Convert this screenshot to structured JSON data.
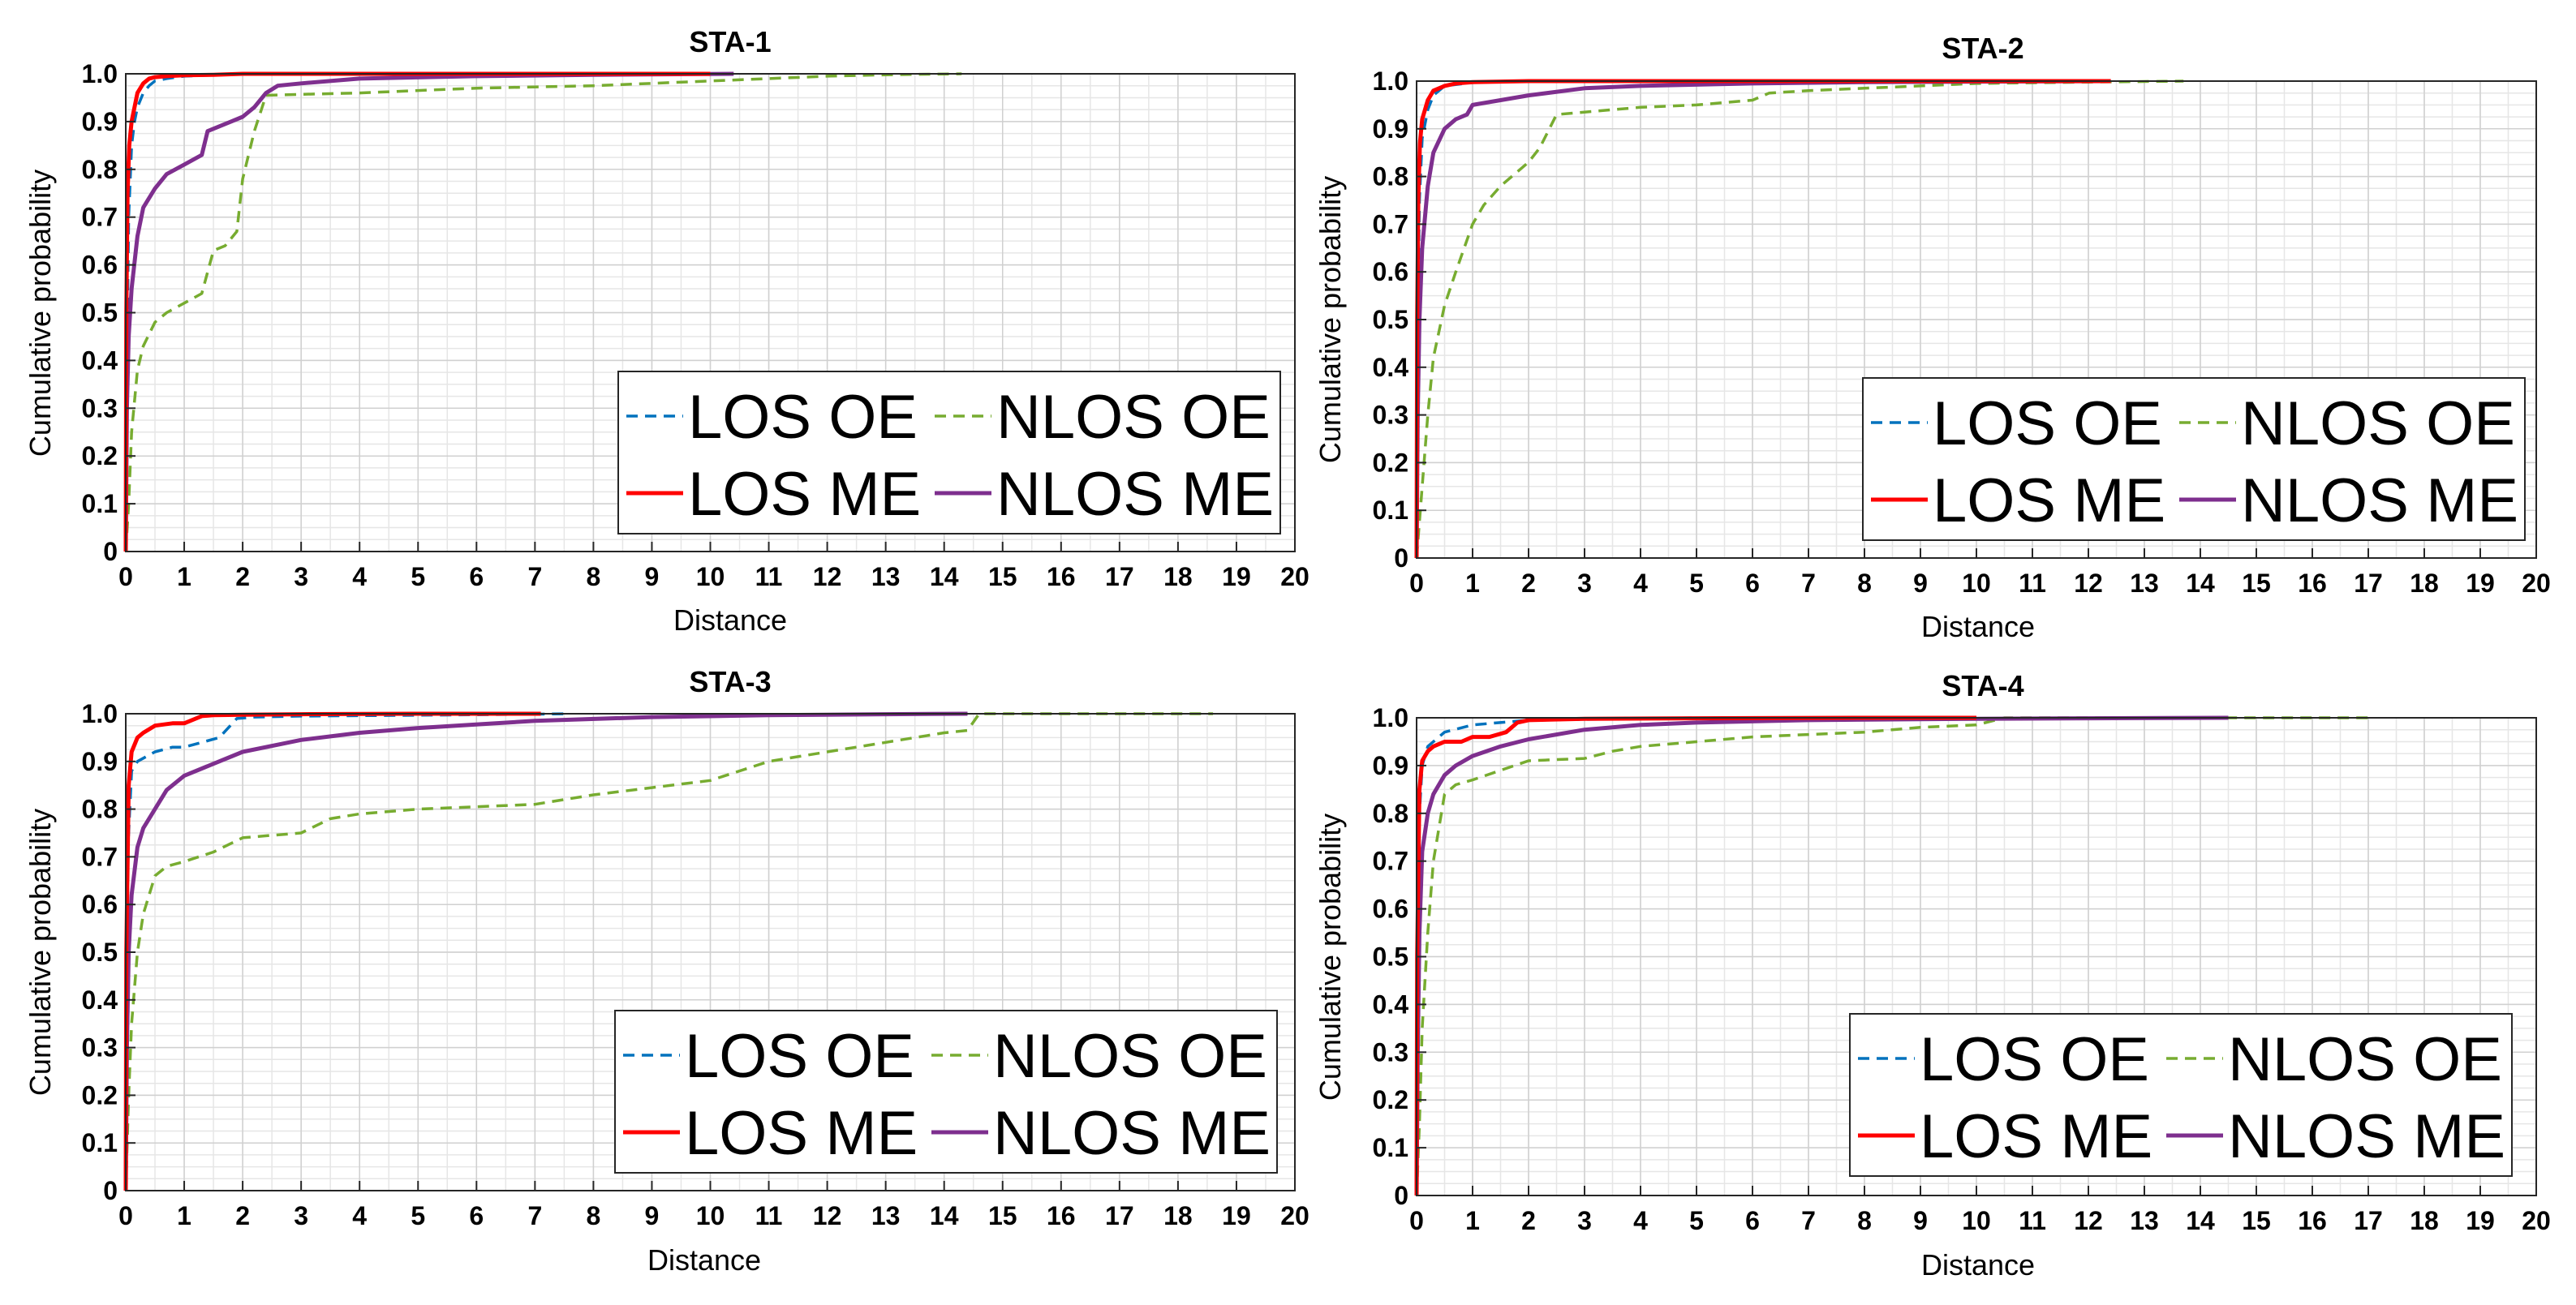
{
  "chart_data": [
    {
      "type": "line",
      "title": "STA-1",
      "xlabel": "Distance",
      "ylabel": "Cumulative probability",
      "xlim": [
        0,
        20
      ],
      "ylim": [
        0,
        1
      ],
      "grid": true,
      "legend_position": "bottom-right",
      "x_ticks": [
        "0",
        "1",
        "2",
        "3",
        "4",
        "5",
        "6",
        "7",
        "8",
        "9",
        "10",
        "11",
        "12",
        "13",
        "14",
        "15",
        "16",
        "17",
        "18",
        "19",
        "20"
      ],
      "y_ticks": [
        "0",
        "0.1",
        "0.2",
        "0.3",
        "0.4",
        "0.5",
        "0.6",
        "0.7",
        "0.8",
        "0.9",
        "1.0"
      ],
      "legend": [
        "LOS OE",
        "NLOS OE",
        "LOS ME",
        "NLOS ME"
      ],
      "series": [
        {
          "name": "LOS OE",
          "color": "#0072BD",
          "dash": "dashed",
          "x": [
            0,
            0.02,
            0.05,
            0.1,
            0.15,
            0.2,
            0.3,
            0.4,
            0.5,
            0.7,
            1,
            2,
            3,
            5
          ],
          "y": [
            0,
            0.4,
            0.7,
            0.85,
            0.9,
            0.93,
            0.96,
            0.975,
            0.985,
            0.99,
            0.995,
            1,
            1,
            1
          ]
        },
        {
          "name": "NLOS OE",
          "color": "#77AC30",
          "dash": "dashed",
          "x": [
            0,
            0.05,
            0.1,
            0.2,
            0.3,
            0.5,
            0.7,
            1,
            1.3,
            1.5,
            1.7,
            1.9,
            2.0,
            2.2,
            2.4,
            3,
            4,
            5,
            6,
            8,
            9,
            10,
            11,
            12,
            13,
            14.3
          ],
          "y": [
            0,
            0.1,
            0.25,
            0.38,
            0.43,
            0.48,
            0.5,
            0.52,
            0.54,
            0.63,
            0.64,
            0.67,
            0.78,
            0.88,
            0.955,
            0.957,
            0.96,
            0.965,
            0.97,
            0.975,
            0.98,
            0.985,
            0.99,
            0.995,
            0.998,
            1.0
          ]
        },
        {
          "name": "LOS ME",
          "color": "#FF0000",
          "dash": "solid",
          "x": [
            0,
            0.01,
            0.03,
            0.06,
            0.1,
            0.15,
            0.2,
            0.3,
            0.4,
            0.5,
            0.7,
            1,
            1.5,
            2,
            3,
            5,
            7,
            10
          ],
          "y": [
            0,
            0.5,
            0.75,
            0.85,
            0.9,
            0.93,
            0.96,
            0.98,
            0.99,
            0.993,
            0.995,
            0.997,
            0.998,
            1,
            1,
            1,
            1,
            1
          ]
        },
        {
          "name": "NLOS ME",
          "color": "#7E2F8E",
          "dash": "solid",
          "x": [
            0,
            0.02,
            0.05,
            0.1,
            0.2,
            0.3,
            0.5,
            0.7,
            1,
            1.3,
            1.4,
            1.6,
            1.8,
            2,
            2.2,
            2.4,
            2.6,
            3,
            4,
            6,
            8,
            10.4
          ],
          "y": [
            0,
            0.3,
            0.45,
            0.55,
            0.66,
            0.72,
            0.76,
            0.79,
            0.81,
            0.83,
            0.88,
            0.89,
            0.9,
            0.91,
            0.93,
            0.96,
            0.975,
            0.98,
            0.99,
            0.995,
            0.998,
            1.0
          ]
        }
      ]
    },
    {
      "type": "line",
      "title": "STA-2",
      "xlabel": "Distance",
      "ylabel": "Cumulative probability",
      "xlim": [
        0,
        20
      ],
      "ylim": [
        0,
        1
      ],
      "grid": true,
      "legend_position": "bottom-right",
      "x_ticks": [
        "0",
        "1",
        "2",
        "3",
        "4",
        "5",
        "6",
        "7",
        "8",
        "9",
        "10",
        "11",
        "12",
        "13",
        "14",
        "15",
        "16",
        "17",
        "18",
        "19",
        "20"
      ],
      "y_ticks": [
        "0",
        "0.1",
        "0.2",
        "0.3",
        "0.4",
        "0.5",
        "0.6",
        "0.7",
        "0.8",
        "0.9",
        "1.0"
      ],
      "legend": [
        "LOS OE",
        "NLOS OE",
        "LOS ME",
        "NLOS ME"
      ],
      "series": [
        {
          "name": "LOS OE",
          "color": "#0072BD",
          "dash": "dashed",
          "x": [
            0,
            0.02,
            0.05,
            0.1,
            0.2,
            0.3,
            0.5,
            1,
            2,
            5
          ],
          "y": [
            0,
            0.5,
            0.75,
            0.88,
            0.94,
            0.97,
            0.99,
            0.997,
            1,
            1
          ]
        },
        {
          "name": "NLOS OE",
          "color": "#77AC30",
          "dash": "dashed",
          "x": [
            0,
            0.1,
            0.2,
            0.3,
            0.5,
            0.7,
            1,
            1.2,
            1.5,
            2,
            2.2,
            2.5,
            3,
            4,
            5,
            6,
            6.3,
            7,
            8,
            9,
            10,
            12,
            13.7
          ],
          "y": [
            0,
            0.15,
            0.3,
            0.42,
            0.53,
            0.6,
            0.7,
            0.74,
            0.78,
            0.83,
            0.86,
            0.93,
            0.935,
            0.945,
            0.95,
            0.96,
            0.975,
            0.98,
            0.985,
            0.99,
            0.995,
            0.998,
            1.0
          ]
        },
        {
          "name": "LOS ME",
          "color": "#FF0000",
          "dash": "solid",
          "x": [
            0,
            0.01,
            0.03,
            0.06,
            0.1,
            0.2,
            0.3,
            0.5,
            0.7,
            1,
            2,
            5,
            12.4
          ],
          "y": [
            0,
            0.5,
            0.75,
            0.87,
            0.92,
            0.96,
            0.98,
            0.99,
            0.995,
            0.998,
            1,
            1,
            1
          ]
        },
        {
          "name": "NLOS ME",
          "color": "#7E2F8E",
          "dash": "solid",
          "x": [
            0,
            0.02,
            0.05,
            0.1,
            0.2,
            0.3,
            0.5,
            0.7,
            0.9,
            1,
            1.5,
            2,
            3,
            4,
            6,
            8,
            10,
            12.4
          ],
          "y": [
            0,
            0.3,
            0.5,
            0.65,
            0.78,
            0.85,
            0.9,
            0.92,
            0.93,
            0.95,
            0.96,
            0.97,
            0.985,
            0.99,
            0.995,
            0.998,
            0.999,
            1.0
          ]
        }
      ]
    },
    {
      "type": "line",
      "title": "STA-3",
      "xlabel": "Distance",
      "ylabel": "Cumulative probability",
      "xlim": [
        0,
        20
      ],
      "ylim": [
        0,
        1
      ],
      "grid": true,
      "legend_position": "bottom-right",
      "x_ticks": [
        "0",
        "1",
        "2",
        "3",
        "4",
        "5",
        "6",
        "7",
        "8",
        "9",
        "10",
        "11",
        "12",
        "13",
        "14",
        "15",
        "16",
        "17",
        "18",
        "19",
        "20"
      ],
      "y_ticks": [
        "0",
        "0.1",
        "0.2",
        "0.3",
        "0.4",
        "0.5",
        "0.6",
        "0.7",
        "0.8",
        "0.9",
        "1.0"
      ],
      "legend": [
        "LOS OE",
        "NLOS OE",
        "LOS ME",
        "NLOS ME"
      ],
      "series": [
        {
          "name": "LOS OE",
          "color": "#0072BD",
          "dash": "dashed",
          "x": [
            0,
            0.03,
            0.1,
            0.2,
            0.5,
            0.8,
            1.0,
            1.3,
            1.6,
            1.9,
            2.2,
            3,
            5,
            7,
            7.6
          ],
          "y": [
            0,
            0.7,
            0.88,
            0.9,
            0.92,
            0.93,
            0.93,
            0.94,
            0.95,
            0.99,
            0.993,
            0.995,
            0.997,
            0.999,
            1.0
          ]
        },
        {
          "name": "NLOS OE",
          "color": "#77AC30",
          "dash": "dashed",
          "x": [
            0,
            0.05,
            0.1,
            0.2,
            0.3,
            0.5,
            0.7,
            1.0,
            1.5,
            2.0,
            2.5,
            3.0,
            3.5,
            4,
            5,
            6,
            7,
            8,
            9,
            10,
            11,
            12,
            13,
            14,
            14.4,
            14.6,
            16,
            18,
            18.6
          ],
          "y": [
            0,
            0.2,
            0.35,
            0.5,
            0.58,
            0.66,
            0.68,
            0.69,
            0.71,
            0.74,
            0.745,
            0.75,
            0.78,
            0.79,
            0.8,
            0.805,
            0.81,
            0.83,
            0.845,
            0.86,
            0.9,
            0.92,
            0.94,
            0.96,
            0.965,
            1.0,
            1.0,
            1.0,
            1.0
          ]
        },
        {
          "name": "LOS ME",
          "color": "#FF0000",
          "dash": "solid",
          "x": [
            0,
            0.01,
            0.05,
            0.1,
            0.2,
            0.3,
            0.5,
            0.8,
            1.0,
            1.3,
            1.5,
            2,
            3,
            5,
            7.1
          ],
          "y": [
            0,
            0.5,
            0.85,
            0.92,
            0.95,
            0.96,
            0.975,
            0.98,
            0.98,
            0.995,
            0.997,
            0.998,
            0.999,
            1,
            1.0
          ]
        },
        {
          "name": "NLOS ME",
          "color": "#7E2F8E",
          "dash": "solid",
          "x": [
            0,
            0.02,
            0.05,
            0.1,
            0.2,
            0.3,
            0.5,
            0.7,
            1.0,
            1.5,
            2,
            3,
            4,
            5,
            7,
            9,
            11,
            13,
            14.4
          ],
          "y": [
            0,
            0.3,
            0.5,
            0.62,
            0.72,
            0.76,
            0.8,
            0.84,
            0.87,
            0.895,
            0.92,
            0.945,
            0.96,
            0.97,
            0.985,
            0.993,
            0.997,
            0.999,
            1.0
          ]
        }
      ]
    },
    {
      "type": "line",
      "title": "STA-4",
      "xlabel": "Distance",
      "ylabel": "Cumulative probability",
      "xlim": [
        0,
        20
      ],
      "ylim": [
        0,
        1
      ],
      "grid": true,
      "legend_position": "bottom-right",
      "x_ticks": [
        "0",
        "1",
        "2",
        "3",
        "4",
        "5",
        "6",
        "7",
        "8",
        "9",
        "10",
        "11",
        "12",
        "13",
        "14",
        "15",
        "16",
        "17",
        "18",
        "19",
        "20"
      ],
      "y_ticks": [
        "0",
        "0.1",
        "0.2",
        "0.3",
        "0.4",
        "0.5",
        "0.6",
        "0.7",
        "0.8",
        "0.9",
        "1.0"
      ],
      "legend": [
        "LOS OE",
        "NLOS OE",
        "LOS ME",
        "NLOS ME"
      ],
      "series": [
        {
          "name": "LOS OE",
          "color": "#0072BD",
          "dash": "dashed",
          "x": [
            0,
            0.02,
            0.05,
            0.1,
            0.2,
            0.5,
            1,
            2,
            5
          ],
          "y": [
            0,
            0.6,
            0.8,
            0.9,
            0.94,
            0.97,
            0.985,
            0.995,
            1
          ]
        },
        {
          "name": "NLOS OE",
          "color": "#77AC30",
          "dash": "dashed",
          "x": [
            0,
            0.05,
            0.1,
            0.2,
            0.3,
            0.5,
            0.7,
            1.0,
            1.5,
            2,
            3,
            3.5,
            4,
            5,
            6,
            7,
            8,
            9,
            10,
            10.5,
            12,
            14,
            17.1
          ],
          "y": [
            0,
            0.15,
            0.35,
            0.55,
            0.7,
            0.84,
            0.86,
            0.87,
            0.89,
            0.91,
            0.915,
            0.93,
            0.94,
            0.95,
            0.96,
            0.965,
            0.97,
            0.98,
            0.985,
            1.0,
            1.0,
            1.0,
            1.0
          ]
        },
        {
          "name": "LOS ME",
          "color": "#FF0000",
          "dash": "solid",
          "x": [
            0,
            0.01,
            0.05,
            0.1,
            0.2,
            0.3,
            0.5,
            0.8,
            1.0,
            1.3,
            1.6,
            1.8,
            2,
            3,
            5,
            8,
            10
          ],
          "y": [
            0,
            0.5,
            0.85,
            0.91,
            0.93,
            0.94,
            0.95,
            0.95,
            0.96,
            0.96,
            0.97,
            0.99,
            0.995,
            0.998,
            0.999,
            1,
            1.0
          ]
        },
        {
          "name": "NLOS ME",
          "color": "#7E2F8E",
          "dash": "solid",
          "x": [
            0,
            0.02,
            0.05,
            0.1,
            0.2,
            0.3,
            0.5,
            0.7,
            1.0,
            1.5,
            2,
            3,
            4,
            5,
            7,
            10,
            12,
            14.5
          ],
          "y": [
            0,
            0.3,
            0.55,
            0.72,
            0.8,
            0.84,
            0.88,
            0.9,
            0.92,
            0.94,
            0.955,
            0.975,
            0.985,
            0.99,
            0.995,
            0.998,
            0.999,
            1.0
          ]
        }
      ]
    }
  ]
}
